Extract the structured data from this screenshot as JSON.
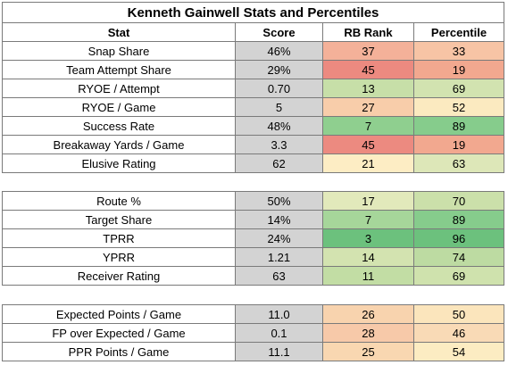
{
  "title": "Kenneth Gainwell Stats and Percentiles",
  "headers": {
    "stat": "Stat",
    "score": "Score",
    "rank": "RB Rank",
    "pct": "Percentile"
  },
  "sections": [
    {
      "rows": [
        {
          "stat": "Snap Share",
          "score": "46%",
          "rank": "37",
          "pct": "33",
          "rank_color": "#f4b199",
          "pct_color": "#f7c4a5"
        },
        {
          "stat": "Team Attempt Share",
          "score": "29%",
          "rank": "45",
          "pct": "19",
          "rank_color": "#ec8a80",
          "pct_color": "#f2a88f"
        },
        {
          "stat": "RYOE / Attempt",
          "score": "0.70",
          "rank": "13",
          "pct": "69",
          "rank_color": "#c7dfa8",
          "pct_color": "#d2e3b0"
        },
        {
          "stat": "RYOE / Game",
          "score": "5",
          "rank": "27",
          "pct": "52",
          "rank_color": "#f8cdaa",
          "pct_color": "#fbeac0"
        },
        {
          "stat": "Success Rate",
          "score": "48%",
          "rank": "7",
          "pct": "89",
          "rank_color": "#8fcf8f",
          "pct_color": "#86cc8c"
        },
        {
          "stat": "Breakaway Yards / Game",
          "score": "3.3",
          "rank": "45",
          "pct": "19",
          "rank_color": "#ec8a80",
          "pct_color": "#f2a88f"
        },
        {
          "stat": "Elusive Rating",
          "score": "62",
          "rank": "21",
          "pct": "63",
          "rank_color": "#fdedc4",
          "pct_color": "#dde7b8"
        }
      ]
    },
    {
      "rows": [
        {
          "stat": "Route %",
          "score": "50%",
          "rank": "17",
          "pct": "70",
          "rank_color": "#e2e9bb",
          "pct_color": "#cbe0aa"
        },
        {
          "stat": "Target Share",
          "score": "14%",
          "rank": "7",
          "pct": "89",
          "rank_color": "#a6d69a",
          "pct_color": "#86cc8c"
        },
        {
          "stat": "TPRR",
          "score": "24%",
          "rank": "3",
          "pct": "96",
          "rank_color": "#6cc17d",
          "pct_color": "#6cc17d"
        },
        {
          "stat": "YPRR",
          "score": "1.21",
          "rank": "14",
          "pct": "74",
          "rank_color": "#d3e3b0",
          "pct_color": "#bddba2"
        },
        {
          "stat": "Receiver Rating",
          "score": "63",
          "rank": "11",
          "pct": "69",
          "rank_color": "#c2dda4",
          "pct_color": "#cfe2ad"
        }
      ]
    },
    {
      "rows": [
        {
          "stat": "Expected Points / Game",
          "score": "11.0",
          "rank": "26",
          "pct": "50",
          "rank_color": "#f8d3ae",
          "pct_color": "#fbe5bc"
        },
        {
          "stat": "FP over Expected / Game",
          "score": "0.1",
          "rank": "28",
          "pct": "46",
          "rank_color": "#f7c9a9",
          "pct_color": "#f9dab6"
        },
        {
          "stat": "PPR Points / Game",
          "score": "11.1",
          "rank": "25",
          "pct": "54",
          "rank_color": "#f9d7b1",
          "pct_color": "#fcecc2"
        }
      ]
    }
  ]
}
